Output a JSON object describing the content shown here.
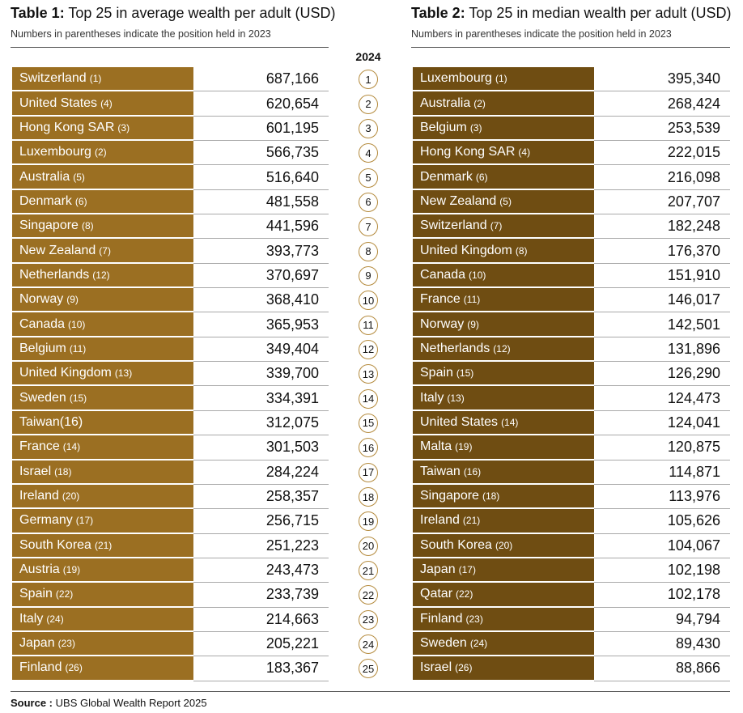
{
  "table1": {
    "label": "Table 1:",
    "title": "Top 25 in average wealth per adult (USD)",
    "subtitle": "Numbers in parentheses indicate the position held in 2023",
    "rows": [
      {
        "name": "Switzerland",
        "prev": "(1)",
        "value": "687,166"
      },
      {
        "name": "United States",
        "prev": "(4)",
        "value": "620,654"
      },
      {
        "name": "Hong Kong SAR",
        "prev": "(3)",
        "value": "601,195"
      },
      {
        "name": "Luxembourg",
        "prev": "(2)",
        "value": "566,735"
      },
      {
        "name": "Australia",
        "prev": "(5)",
        "value": "516,640"
      },
      {
        "name": "Denmark",
        "prev": "(6)",
        "value": "481,558"
      },
      {
        "name": "Singapore",
        "prev": "(8)",
        "value": "441,596"
      },
      {
        "name": "New Zealand",
        "prev": "(7)",
        "value": "393,773"
      },
      {
        "name": "Netherlands",
        "prev": "(12)",
        "value": "370,697"
      },
      {
        "name": "Norway",
        "prev": "(9)",
        "value": "368,410"
      },
      {
        "name": "Canada",
        "prev": "(10)",
        "value": "365,953"
      },
      {
        "name": "Belgium",
        "prev": "(11)",
        "value": "349,404"
      },
      {
        "name": "United Kingdom",
        "prev": "(13)",
        "value": "339,700"
      },
      {
        "name": "Sweden",
        "prev": "(15)",
        "value": "334,391"
      },
      {
        "name": "Taiwan(16)",
        "prev": "",
        "value": "312,075"
      },
      {
        "name": "France",
        "prev": "(14)",
        "value": "301,503"
      },
      {
        "name": "Israel",
        "prev": "(18)",
        "value": "284,224"
      },
      {
        "name": "Ireland",
        "prev": "(20)",
        "value": "258,357"
      },
      {
        "name": "Germany",
        "prev": "(17)",
        "value": "256,715"
      },
      {
        "name": "South Korea",
        "prev": "(21)",
        "value": "251,223"
      },
      {
        "name": "Austria",
        "prev": "(19)",
        "value": "243,473"
      },
      {
        "name": "Spain",
        "prev": "(22)",
        "value": "233,739"
      },
      {
        "name": "Italy",
        "prev": "(24)",
        "value": "214,663"
      },
      {
        "name": "Japan",
        "prev": "(23)",
        "value": "205,221"
      },
      {
        "name": "Finland",
        "prev": "(26)",
        "value": "183,367"
      }
    ]
  },
  "table2": {
    "label": "Table 2:",
    "title": "Top 25 in median wealth per adult (USD)",
    "subtitle": "Numbers in parentheses indicate the position held in 2023",
    "rows": [
      {
        "name": "Luxembourg",
        "prev": "(1)",
        "value": "395,340"
      },
      {
        "name": "Australia",
        "prev": "(2)",
        "value": "268,424"
      },
      {
        "name": "Belgium",
        "prev": "(3)",
        "value": "253,539"
      },
      {
        "name": "Hong Kong SAR",
        "prev": "(4)",
        "value": "222,015"
      },
      {
        "name": "Denmark",
        "prev": "(6)",
        "value": "216,098"
      },
      {
        "name": "New Zealand",
        "prev": "(5)",
        "value": "207,707"
      },
      {
        "name": "Switzerland",
        "prev": "(7)",
        "value": "182,248"
      },
      {
        "name": "United Kingdom",
        "prev": "(8)",
        "value": "176,370"
      },
      {
        "name": "Canada",
        "prev": "(10)",
        "value": "151,910"
      },
      {
        "name": "France",
        "prev": "(11)",
        "value": "146,017"
      },
      {
        "name": "Norway",
        "prev": "(9)",
        "value": "142,501"
      },
      {
        "name": "Netherlands",
        "prev": "(12)",
        "value": "131,896"
      },
      {
        "name": "Spain",
        "prev": "(15)",
        "value": "126,290"
      },
      {
        "name": "Italy",
        "prev": "(13)",
        "value": "124,473"
      },
      {
        "name": "United States",
        "prev": "(14)",
        "value": "124,041"
      },
      {
        "name": "Malta",
        "prev": "(19)",
        "value": "120,875"
      },
      {
        "name": "Taiwan",
        "prev": "(16)",
        "value": "114,871"
      },
      {
        "name": "Singapore",
        "prev": "(18)",
        "value": "113,976"
      },
      {
        "name": "Ireland",
        "prev": "(21)",
        "value": "105,626"
      },
      {
        "name": "South Korea",
        "prev": "(20)",
        "value": "104,067"
      },
      {
        "name": "Japan",
        "prev": "(17)",
        "value": "102,198"
      },
      {
        "name": "Qatar",
        "prev": "(22)",
        "value": "102,178"
      },
      {
        "name": "Finland",
        "prev": "(23)",
        "value": "94,794"
      },
      {
        "name": "Sweden",
        "prev": "(24)",
        "value": "89,430"
      },
      {
        "name": "Israel",
        "prev": "(26)",
        "value": "88,866"
      }
    ]
  },
  "year": "2024",
  "ranks": [
    "1",
    "2",
    "3",
    "4",
    "5",
    "6",
    "7",
    "8",
    "9",
    "10",
    "11",
    "12",
    "13",
    "14",
    "15",
    "16",
    "17",
    "18",
    "19",
    "20",
    "21",
    "22",
    "23",
    "24",
    "25"
  ],
  "source": {
    "label": "Source :",
    "text": "UBS Global Wealth Report 2025"
  },
  "colors": {
    "table1_cell": "#9b6f22",
    "table2_cell": "#6f4d12",
    "rank_circle": "#b48a3c"
  }
}
